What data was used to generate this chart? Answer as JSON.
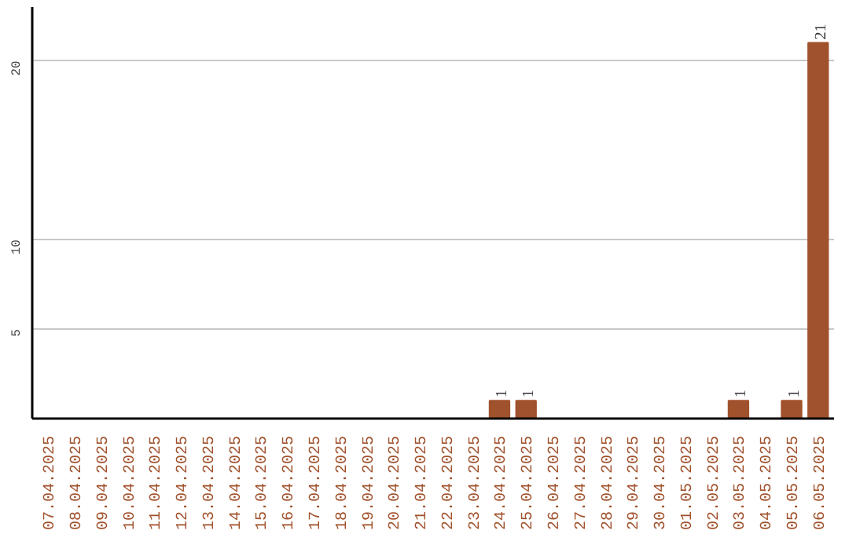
{
  "chart_data": {
    "type": "bar",
    "categories": [
      "07.04.2025",
      "08.04.2025",
      "09.04.2025",
      "10.04.2025",
      "11.04.2025",
      "12.04.2025",
      "13.04.2025",
      "14.04.2025",
      "15.04.2025",
      "16.04.2025",
      "17.04.2025",
      "18.04.2025",
      "19.04.2025",
      "20.04.2025",
      "21.04.2025",
      "22.04.2025",
      "23.04.2025",
      "24.04.2025",
      "25.04.2025",
      "26.04.2025",
      "27.04.2025",
      "28.04.2025",
      "29.04.2025",
      "30.04.2025",
      "01.05.2025",
      "02.05.2025",
      "03.05.2025",
      "04.05.2025",
      "05.05.2025",
      "06.05.2025"
    ],
    "values": [
      0,
      0,
      0,
      0,
      0,
      0,
      0,
      0,
      0,
      0,
      0,
      0,
      0,
      0,
      0,
      0,
      0,
      1,
      1,
      0,
      0,
      0,
      0,
      0,
      0,
      0,
      1,
      0,
      1,
      21
    ],
    "value_labels": [
      null,
      null,
      null,
      null,
      null,
      null,
      null,
      null,
      null,
      null,
      null,
      null,
      null,
      null,
      null,
      null,
      null,
      "1",
      "1",
      null,
      null,
      null,
      null,
      null,
      null,
      null,
      "1",
      null,
      "1",
      "21"
    ],
    "color": "#a0522d",
    "ylim": [
      0,
      23
    ],
    "yticks": [
      5,
      10,
      20
    ],
    "grid": "y"
  }
}
